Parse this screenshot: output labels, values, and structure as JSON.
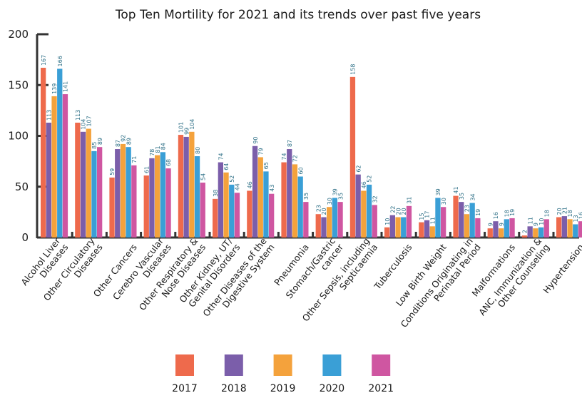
{
  "chart_data": {
    "type": "bar",
    "title": "Top Ten Mortility for 2021 and its trends over past five years",
    "xlabel": "",
    "ylabel": "",
    "ylim": [
      0,
      200
    ],
    "yticks": [
      "0",
      "50",
      "100",
      "150",
      "200"
    ],
    "grid": false,
    "legend_position": "bottom",
    "categories": [
      [
        "Alcohol Liver",
        "Diseases"
      ],
      [
        "Other Circulatory",
        "Diseases"
      ],
      [
        "Other Cancers"
      ],
      [
        "Cerebro Vascular",
        "Diseases"
      ],
      [
        "Other Respiratory &",
        "Nose Diseases"
      ],
      [
        "Other Kidney, UT/",
        "Genital Disorders"
      ],
      [
        "Other Diseases of the",
        "Digestive System"
      ],
      [
        "Pneumonia"
      ],
      [
        "Stomach/Gastric",
        "cancer"
      ],
      [
        "Other Sepsis, including",
        "Septicaemia"
      ],
      [
        "Tuberculosis"
      ],
      [
        "Low Birth Weight"
      ],
      [
        "Conditions Originating in",
        "Perinatal Period"
      ],
      [
        "Malformations"
      ],
      [
        "ANC, Immunization &",
        "Other Counseling"
      ],
      [
        "Hypertension"
      ]
    ],
    "series": [
      {
        "name": "2017",
        "color": "#ee6a4c",
        "values": [
          167,
          113,
          59,
          61,
          101,
          38,
          46,
          74,
          23,
          158,
          10,
          15,
          41,
          9,
          2,
          20
        ]
      },
      {
        "name": "2018",
        "color": "#7b5eaa",
        "values": [
          113,
          104,
          87,
          78,
          99,
          74,
          90,
          87,
          20,
          62,
          22,
          17,
          35,
          16,
          11,
          21
        ]
      },
      {
        "name": "2019",
        "color": "#f4a23c",
        "values": [
          139,
          107,
          92,
          81,
          104,
          64,
          79,
          72,
          30,
          46,
          20,
          11,
          23,
          9,
          9,
          18
        ]
      },
      {
        "name": "2020",
        "color": "#3a9fd6",
        "values": [
          166,
          85,
          89,
          84,
          80,
          52,
          65,
          60,
          39,
          52,
          20,
          39,
          34,
          18,
          10,
          13
        ]
      },
      {
        "name": "2021",
        "color": "#cf56a1",
        "values": [
          141,
          89,
          71,
          68,
          54,
          44,
          43,
          35,
          35,
          32,
          31,
          30,
          19,
          19,
          18,
          16
        ]
      }
    ]
  }
}
